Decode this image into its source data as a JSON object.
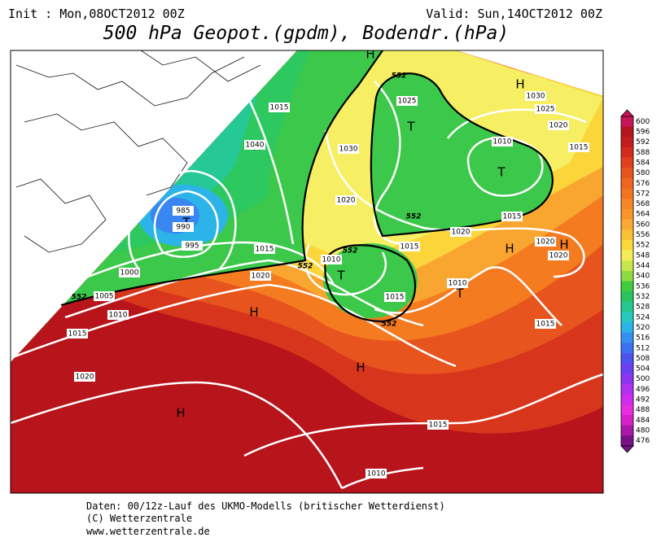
{
  "header": {
    "init": "Init : Mon,08OCT2012 00Z",
    "valid": "Valid: Sun,14OCT2012 00Z",
    "title": "500 hPa Geopot.(gpdm), Bodendr.(hPa)"
  },
  "colorbar": {
    "labels": [
      600,
      596,
      592,
      588,
      584,
      580,
      576,
      572,
      568,
      564,
      560,
      556,
      552,
      548,
      544,
      540,
      536,
      532,
      528,
      524,
      520,
      516,
      512,
      508,
      504,
      500,
      496,
      492,
      488,
      484,
      480,
      476
    ],
    "colors": [
      "#c8145a",
      "#b4141e",
      "#c41c1c",
      "#d42c1c",
      "#e0401c",
      "#e8541e",
      "#ee6420",
      "#f27420",
      "#f68624",
      "#f8962a",
      "#faaa30",
      "#fbc036",
      "#fbd83c",
      "#f4ec58",
      "#c8e64c",
      "#8cdc40",
      "#40cc3c",
      "#28c460",
      "#24c890",
      "#26c8c0",
      "#2cb4e8",
      "#3490f0",
      "#3c70f0",
      "#4c54f0",
      "#6a40f0",
      "#8c34f0",
      "#b030f0",
      "#d02cf0",
      "#e82ce0",
      "#d820c8",
      "#a818a8",
      "#7a1088"
    ]
  },
  "map": {
    "centers": [
      "H",
      "H",
      "H",
      "H",
      "H",
      "H",
      "H",
      "H",
      "T",
      "T",
      "T",
      "T",
      "T"
    ],
    "isobar_labels": [
      "1015",
      "1040",
      "1025",
      "1030",
      "1030",
      "1025",
      "1020",
      "1010",
      "1015",
      "1020",
      "1015",
      "1020",
      "1015",
      "1020",
      "1020",
      "985",
      "990",
      "995",
      "1015",
      "1020",
      "1010",
      "1000",
      "1005",
      "1010",
      "1015",
      "1020",
      "1015",
      "1010",
      "1015",
      "1015",
      "1010"
    ],
    "contour_labels": [
      "552",
      "552",
      "552",
      "552",
      "552",
      "552"
    ]
  },
  "footer": {
    "line1": "Daten: 00/12z-Lauf des UKMO-Modells (britischer Wetterdienst)",
    "line2": "(C) Wetterzentrale",
    "line3": "www.wetterzentrale.de"
  }
}
